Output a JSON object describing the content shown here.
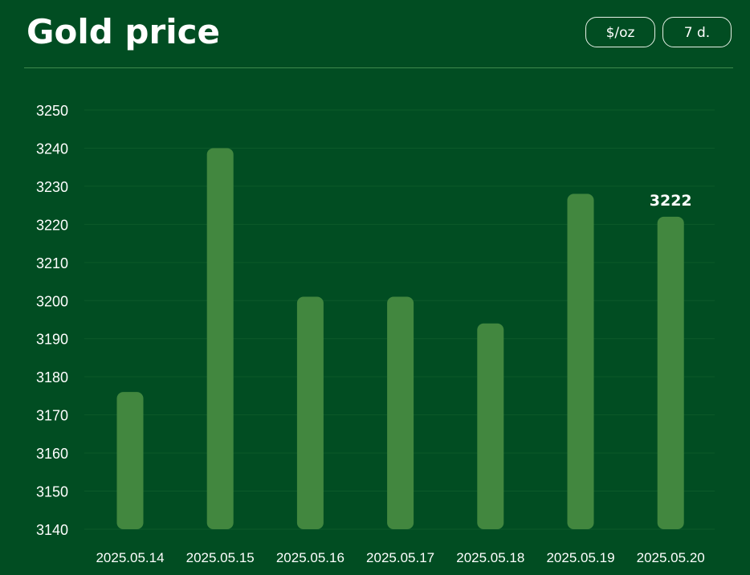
{
  "header": {
    "title": "Gold price",
    "unit_button": "$/oz",
    "period_button": "7 d."
  },
  "colors": {
    "background": "#014d22",
    "bar": "#42873f",
    "grid": "#0d5a2a",
    "text": "#ffffff"
  },
  "chart_data": {
    "type": "bar",
    "title": "Gold price",
    "categories": [
      "2025.05.14",
      "2025.05.15",
      "2025.05.16",
      "2025.05.17",
      "2025.05.18",
      "2025.05.19",
      "2025.05.20"
    ],
    "values": [
      3176,
      3240,
      3201,
      3201,
      3194,
      3228,
      3222
    ],
    "ylim": [
      3140,
      3250
    ],
    "yticks": [
      3140,
      3150,
      3160,
      3170,
      3180,
      3190,
      3200,
      3210,
      3220,
      3230,
      3240,
      3250
    ],
    "xlabel": "",
    "ylabel": "",
    "grid": true,
    "annotations": [
      {
        "category": "2025.05.20",
        "text": "3222"
      }
    ]
  }
}
